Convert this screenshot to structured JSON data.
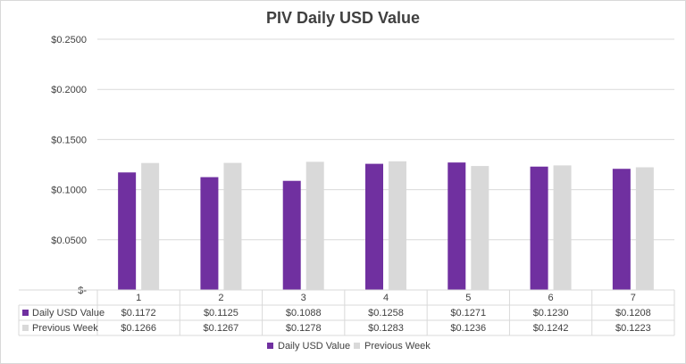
{
  "chart_data": {
    "type": "bar",
    "title": "PIV Daily USD Value",
    "categories": [
      "1",
      "2",
      "3",
      "4",
      "5",
      "6",
      "7"
    ],
    "series": [
      {
        "name": "Daily USD Value",
        "values": [
          0.1172,
          0.1125,
          0.1088,
          0.1258,
          0.1271,
          0.123,
          0.1208
        ],
        "labels": [
          "$0.1172",
          "$0.1125",
          "$0.1088",
          "$0.1258",
          "$0.1271",
          "$0.1230",
          "$0.1208"
        ],
        "color": "#7030A0"
      },
      {
        "name": "Previous Week",
        "values": [
          0.1266,
          0.1267,
          0.1278,
          0.1283,
          0.1236,
          0.1242,
          0.1223
        ],
        "labels": [
          "$0.1266",
          "$0.1267",
          "$0.1278",
          "$0.1283",
          "$0.1236",
          "$0.1242",
          "$0.1223"
        ],
        "color": "#D9D9D9"
      }
    ],
    "ylim": [
      0,
      0.25
    ],
    "y_ticks": [
      {
        "value": 0,
        "label": "$-"
      },
      {
        "value": 0.05,
        "label": "$0.0500"
      },
      {
        "value": 0.1,
        "label": "$0.1000"
      },
      {
        "value": 0.15,
        "label": "$0.1500"
      },
      {
        "value": 0.2,
        "label": "$0.2000"
      },
      {
        "value": 0.25,
        "label": "$0.2500"
      }
    ],
    "grid": true,
    "data_table": true,
    "legend_position": "bottom"
  }
}
